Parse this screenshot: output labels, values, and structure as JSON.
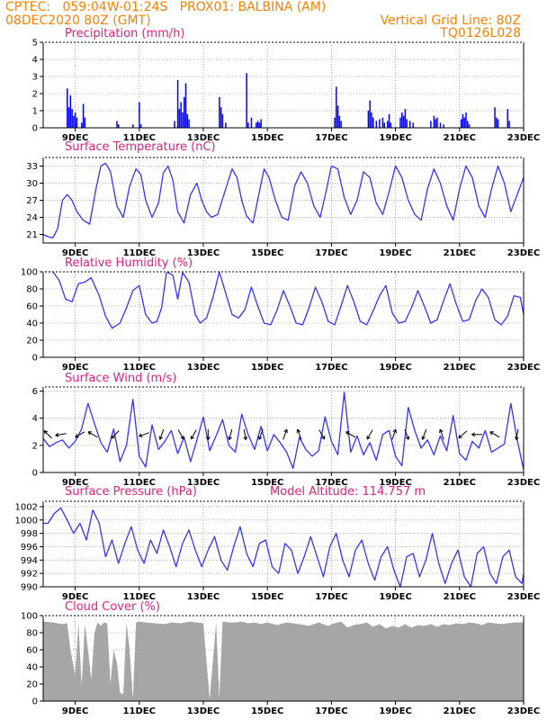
{
  "header": {
    "line1": "CPTEC:   059:04W-01:24S   PROX01: BALBINA (AM)",
    "line2_left": "08DEC2020 80Z (GMT)",
    "line2_right": "Vertical Grid Line: 80Z",
    "line3_right": "TQ0126L028"
  },
  "x_ticks": [
    "9DEC",
    "11DEC",
    "13DEC",
    "15DEC",
    "17DEC",
    "19DEC",
    "21DEC",
    "23DEC"
  ],
  "chart_data": [
    {
      "type": "bar",
      "title": "Precipitation (mm/h)",
      "ylim": [
        0,
        5
      ],
      "yticks": [
        "0",
        "1",
        "2",
        "3",
        "4",
        "5"
      ],
      "color": "#0000ff",
      "bars": [
        {
          "t": 8.75,
          "v": 2.3
        },
        {
          "t": 8.8,
          "v": 1.2
        },
        {
          "t": 8.85,
          "v": 1.9
        },
        {
          "t": 8.9,
          "v": 1.1
        },
        {
          "t": 8.95,
          "v": 0.7
        },
        {
          "t": 9.0,
          "v": 0.9
        },
        {
          "t": 9.05,
          "v": 0.6
        },
        {
          "t": 9.2,
          "v": 0.3
        },
        {
          "t": 9.25,
          "v": 1.4
        },
        {
          "t": 9.3,
          "v": 0.6
        },
        {
          "t": 10.3,
          "v": 0.4
        },
        {
          "t": 10.35,
          "v": 0.2
        },
        {
          "t": 10.8,
          "v": 0.2
        },
        {
          "t": 11.0,
          "v": 1.5
        },
        {
          "t": 11.05,
          "v": 0.2
        },
        {
          "t": 12.1,
          "v": 0.4
        },
        {
          "t": 12.2,
          "v": 2.8
        },
        {
          "t": 12.25,
          "v": 1.1
        },
        {
          "t": 12.3,
          "v": 1.5
        },
        {
          "t": 12.35,
          "v": 0.9
        },
        {
          "t": 12.4,
          "v": 1.8
        },
        {
          "t": 12.45,
          "v": 2.6
        },
        {
          "t": 12.5,
          "v": 0.8
        },
        {
          "t": 12.55,
          "v": 0.5
        },
        {
          "t": 13.5,
          "v": 1.8
        },
        {
          "t": 13.55,
          "v": 1.2
        },
        {
          "t": 13.6,
          "v": 0.8
        },
        {
          "t": 13.7,
          "v": 0.3
        },
        {
          "t": 14.35,
          "v": 3.2
        },
        {
          "t": 14.4,
          "v": 0.3
        },
        {
          "t": 14.5,
          "v": 0.6
        },
        {
          "t": 14.65,
          "v": 0.3
        },
        {
          "t": 14.7,
          "v": 0.4
        },
        {
          "t": 14.75,
          "v": 0.3
        },
        {
          "t": 14.8,
          "v": 0.5
        },
        {
          "t": 17.1,
          "v": 0.6
        },
        {
          "t": 17.15,
          "v": 2.4
        },
        {
          "t": 17.2,
          "v": 1.3
        },
        {
          "t": 17.25,
          "v": 0.7
        },
        {
          "t": 17.3,
          "v": 0.4
        },
        {
          "t": 18.15,
          "v": 1.0
        },
        {
          "t": 18.2,
          "v": 1.6
        },
        {
          "t": 18.25,
          "v": 0.9
        },
        {
          "t": 18.3,
          "v": 0.6
        },
        {
          "t": 18.4,
          "v": 0.4
        },
        {
          "t": 18.5,
          "v": 0.5
        },
        {
          "t": 18.6,
          "v": 0.6
        },
        {
          "t": 18.65,
          "v": 0.3
        },
        {
          "t": 18.75,
          "v": 0.4
        },
        {
          "t": 18.8,
          "v": 0.8
        },
        {
          "t": 18.85,
          "v": 0.3
        },
        {
          "t": 19.15,
          "v": 0.6
        },
        {
          "t": 19.2,
          "v": 0.9
        },
        {
          "t": 19.25,
          "v": 0.7
        },
        {
          "t": 19.3,
          "v": 1.1
        },
        {
          "t": 19.35,
          "v": 0.5
        },
        {
          "t": 19.45,
          "v": 0.4
        },
        {
          "t": 19.55,
          "v": 0.3
        },
        {
          "t": 20.1,
          "v": 0.4
        },
        {
          "t": 20.2,
          "v": 0.7
        },
        {
          "t": 20.25,
          "v": 0.5
        },
        {
          "t": 20.3,
          "v": 0.6
        },
        {
          "t": 20.4,
          "v": 0.3
        },
        {
          "t": 20.5,
          "v": 0.2
        },
        {
          "t": 21.05,
          "v": 0.5
        },
        {
          "t": 21.1,
          "v": 0.8
        },
        {
          "t": 21.15,
          "v": 0.6
        },
        {
          "t": 21.2,
          "v": 0.9
        },
        {
          "t": 21.25,
          "v": 0.4
        },
        {
          "t": 21.3,
          "v": 0.2
        },
        {
          "t": 22.1,
          "v": 1.2
        },
        {
          "t": 22.15,
          "v": 0.6
        },
        {
          "t": 22.2,
          "v": 0.5
        },
        {
          "t": 22.5,
          "v": 1.1
        },
        {
          "t": 22.55,
          "v": 0.4
        }
      ]
    },
    {
      "type": "line",
      "title": "Surface Temperature (nC)",
      "ylim": [
        19.5,
        34.5
      ],
      "yticks": [
        "21",
        "24",
        "27",
        "30",
        "33"
      ],
      "color": "#3333ff",
      "t": [
        8.0,
        8.15,
        8.3,
        8.45,
        8.6,
        8.75,
        8.9,
        9.05,
        9.25,
        9.45,
        9.65,
        9.8,
        9.95,
        10.1,
        10.3,
        10.5,
        10.7,
        10.9,
        11.05,
        11.2,
        11.4,
        11.6,
        11.75,
        11.9,
        12.05,
        12.2,
        12.4,
        12.6,
        12.8,
        12.95,
        13.1,
        13.25,
        13.45,
        13.7,
        13.9,
        14.05,
        14.2,
        14.35,
        14.55,
        14.75,
        14.9,
        15.05,
        15.25,
        15.45,
        15.65,
        15.85,
        16.05,
        16.25,
        16.45,
        16.65,
        16.85,
        17.0,
        17.2,
        17.4,
        17.6,
        17.8,
        18.0,
        18.2,
        18.4,
        18.6,
        18.8,
        19.0,
        19.2,
        19.4,
        19.6,
        19.8,
        20.0,
        20.2,
        20.4,
        20.6,
        20.8,
        21.0,
        21.2,
        21.4,
        21.6,
        21.8,
        22.0,
        22.2,
        22.4,
        22.6,
        22.8,
        23.0
      ],
      "values": [
        21.0,
        20.6,
        20.4,
        22.0,
        27.0,
        28.0,
        27.0,
        25.0,
        23.5,
        22.8,
        29.0,
        33.0,
        33.5,
        32.0,
        26.0,
        24.0,
        29.5,
        32.5,
        31.5,
        27.0,
        24.0,
        26.5,
        31.8,
        33.0,
        30.5,
        25.0,
        23.0,
        28.0,
        30.0,
        27.0,
        25.0,
        24.0,
        24.5,
        29.0,
        32.5,
        31.0,
        27.0,
        24.2,
        23.0,
        28.5,
        32.5,
        31.0,
        27.0,
        24.0,
        23.5,
        29.5,
        32.0,
        30.0,
        26.0,
        24.0,
        29.0,
        33.0,
        32.5,
        27.5,
        24.5,
        27.0,
        32.0,
        31.0,
        26.5,
        24.5,
        28.5,
        33.0,
        31.0,
        27.0,
        24.5,
        23.5,
        29.0,
        32.5,
        30.0,
        26.0,
        23.5,
        29.0,
        33.0,
        31.0,
        26.0,
        24.0,
        29.0,
        33.0,
        30.0,
        25.0,
        28.0,
        31.0
      ]
    },
    {
      "type": "line",
      "title": "Relative Humidity (%)",
      "ylim": [
        0,
        100
      ],
      "yticks": [
        "0",
        "20",
        "40",
        "60",
        "80",
        "100"
      ],
      "color": "#3333ff",
      "t": [
        8.0,
        8.3,
        8.5,
        8.7,
        8.9,
        9.1,
        9.3,
        9.5,
        9.75,
        9.95,
        10.15,
        10.4,
        10.6,
        10.8,
        11.0,
        11.2,
        11.4,
        11.55,
        11.7,
        11.85,
        12.05,
        12.2,
        12.35,
        12.55,
        12.75,
        12.9,
        13.1,
        13.3,
        13.5,
        13.7,
        13.9,
        14.1,
        14.3,
        14.5,
        14.7,
        14.9,
        15.1,
        15.3,
        15.5,
        15.7,
        15.9,
        16.1,
        16.3,
        16.5,
        16.7,
        16.9,
        17.1,
        17.3,
        17.5,
        17.7,
        17.9,
        18.1,
        18.3,
        18.5,
        18.7,
        18.9,
        19.1,
        19.3,
        19.5,
        19.7,
        19.9,
        20.1,
        20.3,
        20.5,
        20.7,
        20.9,
        21.1,
        21.3,
        21.5,
        21.7,
        21.9,
        22.1,
        22.3,
        22.5,
        22.7,
        22.9,
        23.0
      ],
      "values": [
        100,
        100,
        90,
        68,
        65,
        86,
        88,
        93,
        72,
        48,
        34,
        40,
        58,
        78,
        84,
        50,
        40,
        42,
        58,
        100,
        96,
        68,
        99,
        88,
        50,
        40,
        46,
        70,
        100,
        75,
        50,
        46,
        56,
        82,
        60,
        40,
        38,
        55,
        78,
        60,
        40,
        38,
        58,
        82,
        65,
        42,
        38,
        60,
        84,
        65,
        42,
        38,
        54,
        72,
        84,
        52,
        40,
        42,
        58,
        78,
        60,
        40,
        44,
        66,
        86,
        62,
        42,
        44,
        66,
        80,
        70,
        44,
        38,
        48,
        72,
        70,
        50
      ]
    },
    {
      "type": "line",
      "title": "Surface Wind (m/s)",
      "ylim": [
        0,
        6.3
      ],
      "yticks": [
        "0",
        "2",
        "4",
        "6"
      ],
      "color": "#3333ff",
      "t": [
        8.0,
        8.2,
        8.4,
        8.6,
        8.8,
        9.0,
        9.2,
        9.4,
        9.6,
        9.8,
        10.0,
        10.2,
        10.4,
        10.6,
        10.8,
        11.0,
        11.2,
        11.4,
        11.6,
        11.8,
        12.0,
        12.2,
        12.4,
        12.6,
        12.8,
        13.0,
        13.2,
        13.4,
        13.6,
        13.8,
        14.0,
        14.2,
        14.4,
        14.6,
        14.8,
        15.0,
        15.2,
        15.4,
        15.6,
        15.8,
        16.0,
        16.2,
        16.4,
        16.6,
        16.8,
        17.0,
        17.2,
        17.4,
        17.6,
        17.8,
        18.0,
        18.2,
        18.4,
        18.6,
        18.8,
        19.0,
        19.2,
        19.4,
        19.6,
        19.8,
        20.0,
        20.2,
        20.4,
        20.6,
        20.8,
        21.0,
        21.2,
        21.4,
        21.6,
        21.8,
        22.0,
        22.2,
        22.4,
        22.6,
        22.8,
        23.0
      ],
      "values": [
        2.5,
        1.9,
        2.2,
        2.4,
        1.8,
        2.3,
        3.2,
        5.1,
        3.6,
        2.2,
        1.5,
        3.2,
        0.8,
        2.0,
        5.4,
        1.2,
        0.4,
        3.5,
        1.7,
        2.3,
        3.1,
        1.4,
        2.6,
        0.8,
        2.4,
        4.1,
        1.6,
        2.7,
        3.9,
        2.0,
        1.5,
        4.3,
        2.8,
        1.7,
        3.4,
        1.6,
        2.8,
        2.2,
        1.5,
        0.3,
        2.6,
        1.7,
        1.2,
        1.6,
        4.1,
        2.3,
        1.3,
        5.9,
        1.5,
        2.7,
        1.3,
        2.2,
        0.9,
        2.8,
        3.1,
        1.2,
        0.5,
        4.8,
        3.1,
        1.8,
        2.4,
        1.3,
        2.7,
        1.6,
        4.2,
        1.4,
        0.9,
        2.3,
        1.8,
        3.1,
        1.5,
        1.8,
        2.1,
        5.1,
        2.4,
        0.2
      ]
    },
    {
      "type": "line",
      "title": "Surface Pressure (hPa)",
      "annotation": "Model Altitude: 114.757 m",
      "ylim": [
        990,
        1002.8
      ],
      "yticks": [
        "990",
        "992",
        "994",
        "996",
        "998",
        "1000",
        "1002"
      ],
      "color": "#3333ff",
      "t": [
        8.0,
        8.15,
        8.35,
        8.55,
        8.75,
        8.95,
        9.15,
        9.35,
        9.55,
        9.75,
        9.95,
        10.15,
        10.35,
        10.55,
        10.75,
        10.95,
        11.15,
        11.35,
        11.55,
        11.75,
        11.95,
        12.15,
        12.35,
        12.55,
        12.75,
        12.95,
        13.15,
        13.35,
        13.55,
        13.75,
        13.95,
        14.15,
        14.35,
        14.55,
        14.75,
        14.95,
        15.15,
        15.35,
        15.55,
        15.75,
        15.95,
        16.15,
        16.35,
        16.55,
        16.75,
        16.95,
        17.15,
        17.35,
        17.55,
        17.75,
        17.95,
        18.15,
        18.35,
        18.55,
        18.75,
        18.95,
        19.15,
        19.35,
        19.55,
        19.75,
        19.95,
        20.15,
        20.35,
        20.55,
        20.75,
        20.95,
        21.15,
        21.35,
        21.55,
        21.75,
        21.95,
        22.15,
        22.35,
        22.55,
        22.75,
        22.95,
        23.0
      ],
      "values": [
        999.5,
        999.5,
        1001.0,
        1001.8,
        1000.0,
        998.0,
        999.5,
        997.0,
        1001.5,
        999.5,
        994.5,
        997.0,
        993.5,
        996.5,
        999.0,
        995.5,
        993.5,
        997.0,
        995.0,
        998.5,
        996.0,
        993.0,
        996.5,
        998.5,
        995.5,
        993.0,
        995.5,
        997.5,
        994.0,
        992.5,
        996.0,
        999.0,
        995.0,
        993.0,
        996.5,
        997.0,
        993.0,
        992.0,
        996.5,
        995.5,
        992.0,
        994.5,
        997.5,
        994.5,
        991.5,
        996.0,
        998.0,
        994.0,
        991.5,
        995.5,
        997.0,
        993.5,
        991.0,
        994.5,
        996.0,
        992.5,
        990.0,
        994.5,
        995.0,
        991.5,
        994.0,
        998.0,
        993.5,
        990.5,
        993.5,
        995.5,
        991.5,
        990.0,
        995.0,
        996.0,
        992.0,
        990.5,
        994.5,
        995.5,
        991.5,
        990.5,
        992.0
      ]
    },
    {
      "type": "area",
      "title": "Cloud Cover (%)",
      "ylim": [
        0,
        100
      ],
      "yticks": [
        "0",
        "20",
        "40",
        "60",
        "80",
        "100"
      ],
      "color": "#a6a6a6",
      "t": [
        8.0,
        8.3,
        8.6,
        8.75,
        8.85,
        9.0,
        9.1,
        9.2,
        9.3,
        9.4,
        9.5,
        9.6,
        9.7,
        9.8,
        9.9,
        10.0,
        10.1,
        10.2,
        10.3,
        10.4,
        10.5,
        10.6,
        10.7,
        10.8,
        10.9,
        11.0,
        11.2,
        11.5,
        11.8,
        12.0,
        12.3,
        12.6,
        12.8,
        13.0,
        13.2,
        13.4,
        13.5,
        13.6,
        13.8,
        14.0,
        14.2,
        14.4,
        14.6,
        14.8,
        15.0,
        15.3,
        15.6,
        16.0,
        16.3,
        16.6,
        16.9,
        17.1,
        17.3,
        17.5,
        17.7,
        17.9,
        18.1,
        18.3,
        18.5,
        18.7,
        18.9,
        19.1,
        19.3,
        19.5,
        19.7,
        19.9,
        20.1,
        20.3,
        20.5,
        20.7,
        20.9,
        21.1,
        21.3,
        21.5,
        21.7,
        21.9,
        22.1,
        22.3,
        22.5,
        22.7,
        23.0
      ],
      "values": [
        93,
        92,
        90,
        91,
        60,
        30,
        92,
        18,
        90,
        60,
        25,
        80,
        92,
        88,
        92,
        91,
        20,
        60,
        45,
        10,
        8,
        92,
        60,
        2,
        92,
        93,
        92,
        91,
        90,
        92,
        91,
        93,
        92,
        91,
        2,
        92,
        4,
        93,
        92,
        92,
        93,
        91,
        92,
        90,
        92,
        89,
        92,
        90,
        88,
        92,
        88,
        91,
        93,
        86,
        89,
        90,
        92,
        87,
        90,
        85,
        88,
        86,
        90,
        86,
        89,
        88,
        90,
        87,
        90,
        89,
        91,
        90,
        92,
        91,
        89,
        92,
        91,
        90,
        91,
        92,
        92
      ]
    }
  ],
  "wind_arrows": [
    {
      "t": 8.15,
      "dir": 315
    },
    {
      "t": 8.55,
      "dir": 260
    },
    {
      "t": 9.15,
      "dir": 240
    },
    {
      "t": 9.55,
      "dir": 300
    },
    {
      "t": 10.25,
      "dir": 225
    },
    {
      "t": 11.15,
      "dir": 250
    },
    {
      "t": 11.7,
      "dir": 200
    },
    {
      "t": 12.3,
      "dir": 150
    },
    {
      "t": 12.7,
      "dir": 210
    },
    {
      "t": 13.15,
      "dir": 180
    },
    {
      "t": 13.85,
      "dir": 195
    },
    {
      "t": 14.3,
      "dir": 170
    },
    {
      "t": 14.8,
      "dir": 200
    },
    {
      "t": 15.55,
      "dir": 20
    },
    {
      "t": 16.0,
      "dir": 340
    },
    {
      "t": 16.7,
      "dir": 150
    },
    {
      "t": 17.6,
      "dir": 300
    },
    {
      "t": 18.2,
      "dir": 210
    },
    {
      "t": 18.95,
      "dir": 20
    },
    {
      "t": 19.35,
      "dir": 160
    },
    {
      "t": 19.9,
      "dir": 200
    },
    {
      "t": 20.45,
      "dir": 340
    },
    {
      "t": 21.1,
      "dir": 230
    },
    {
      "t": 21.55,
      "dir": 270
    },
    {
      "t": 22.1,
      "dir": 300
    },
    {
      "t": 22.8,
      "dir": 190
    }
  ]
}
